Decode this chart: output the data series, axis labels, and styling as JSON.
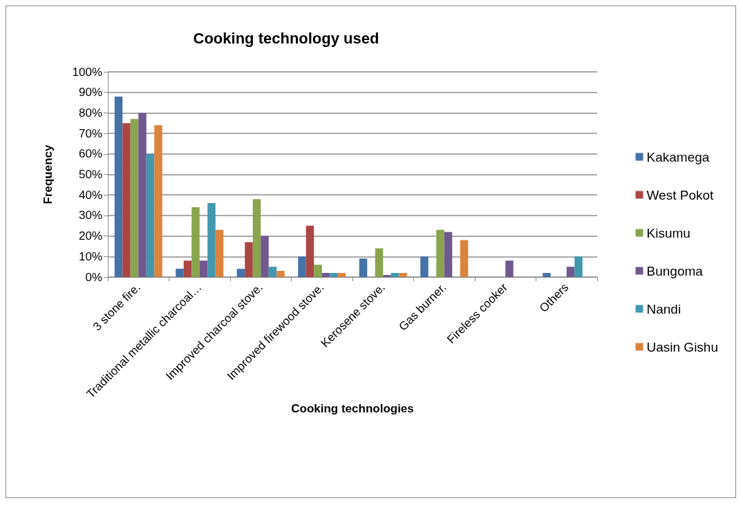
{
  "chart_data": {
    "type": "bar",
    "title": "Cooking technology used",
    "xlabel": "Cooking technologies",
    "ylabel": "Frequency",
    "categories": [
      "3 stone fire.",
      "Traditional metallic charcoal…",
      "Improved charcoal stove.",
      "Improved firewood stove.",
      "Kerosene stove.",
      "Gas burner.",
      "Fireless cooker",
      "Others"
    ],
    "series": [
      {
        "name": "Kakamega",
        "color": "#4572a7",
        "values": [
          88,
          4,
          4,
          10,
          9,
          10,
          0,
          2
        ]
      },
      {
        "name": "West Pokot",
        "color": "#aa4643",
        "values": [
          75,
          8,
          17,
          25,
          0,
          0,
          0,
          0
        ]
      },
      {
        "name": "Kisumu",
        "color": "#89a54e",
        "values": [
          77,
          34,
          38,
          6,
          14,
          23,
          0,
          0
        ]
      },
      {
        "name": "Bungoma",
        "color": "#71588f",
        "values": [
          80,
          8,
          20,
          2,
          1,
          22,
          8,
          5
        ]
      },
      {
        "name": "Nandi",
        "color": "#4198af",
        "values": [
          60,
          36,
          5,
          2,
          2,
          0,
          0,
          10
        ]
      },
      {
        "name": "Uasin Gishu",
        "color": "#db843d",
        "values": [
          74,
          23,
          3,
          2,
          2,
          18,
          0,
          0
        ]
      }
    ],
    "ylim": [
      0,
      100
    ],
    "yticks": [
      {
        "value": 0,
        "label": "0%"
      },
      {
        "value": 10,
        "label": "10%"
      },
      {
        "value": 20,
        "label": "20%"
      },
      {
        "value": 30,
        "label": "30%"
      },
      {
        "value": 40,
        "label": "40%"
      },
      {
        "value": 50,
        "label": "50%"
      },
      {
        "value": 60,
        "label": "60%"
      },
      {
        "value": 70,
        "label": "70%"
      },
      {
        "value": 80,
        "label": "80%"
      },
      {
        "value": 90,
        "label": "90%"
      },
      {
        "value": 100,
        "label": "100%"
      }
    ],
    "grid": "y",
    "legend": "right"
  }
}
